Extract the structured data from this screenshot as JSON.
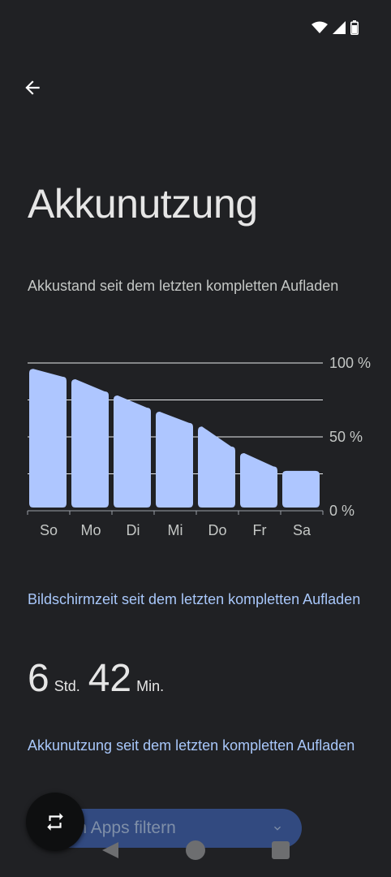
{
  "status_bar": {
    "icons": [
      "wifi-icon",
      "signal-icon",
      "battery-icon"
    ]
  },
  "header": {
    "title": "Akkunutzung"
  },
  "battery_chart": {
    "caption": "Akkustand seit dem letzten kompletten Aufladen"
  },
  "chart_data": {
    "type": "bar",
    "categories": [
      "So",
      "Mo",
      "Di",
      "Mi",
      "Do",
      "Fr",
      "Sa"
    ],
    "values": [
      96,
      89,
      78,
      67,
      57,
      39,
      27
    ],
    "ylim": [
      0,
      100
    ],
    "y_ticks": [
      {
        "value": 100,
        "label": "100 %"
      },
      {
        "value": 50,
        "label": "50 %"
      },
      {
        "value": 0,
        "label": "0 %"
      }
    ],
    "grid": true,
    "color": "#aec6ff"
  },
  "screen_time": {
    "title": "Bildschirmzeit seit dem letzten kompletten Aufladen",
    "hours": "6",
    "hours_unit": "Std.",
    "minutes": "42",
    "minutes_unit": "Min."
  },
  "usage": {
    "title": "Akkunutzung seit dem letzten kompletten Aufladen",
    "filter_label": "Nach Apps filtern"
  },
  "colors": {
    "accent": "#a8c7fa",
    "background": "#202124",
    "bar": "#aec6ff"
  }
}
